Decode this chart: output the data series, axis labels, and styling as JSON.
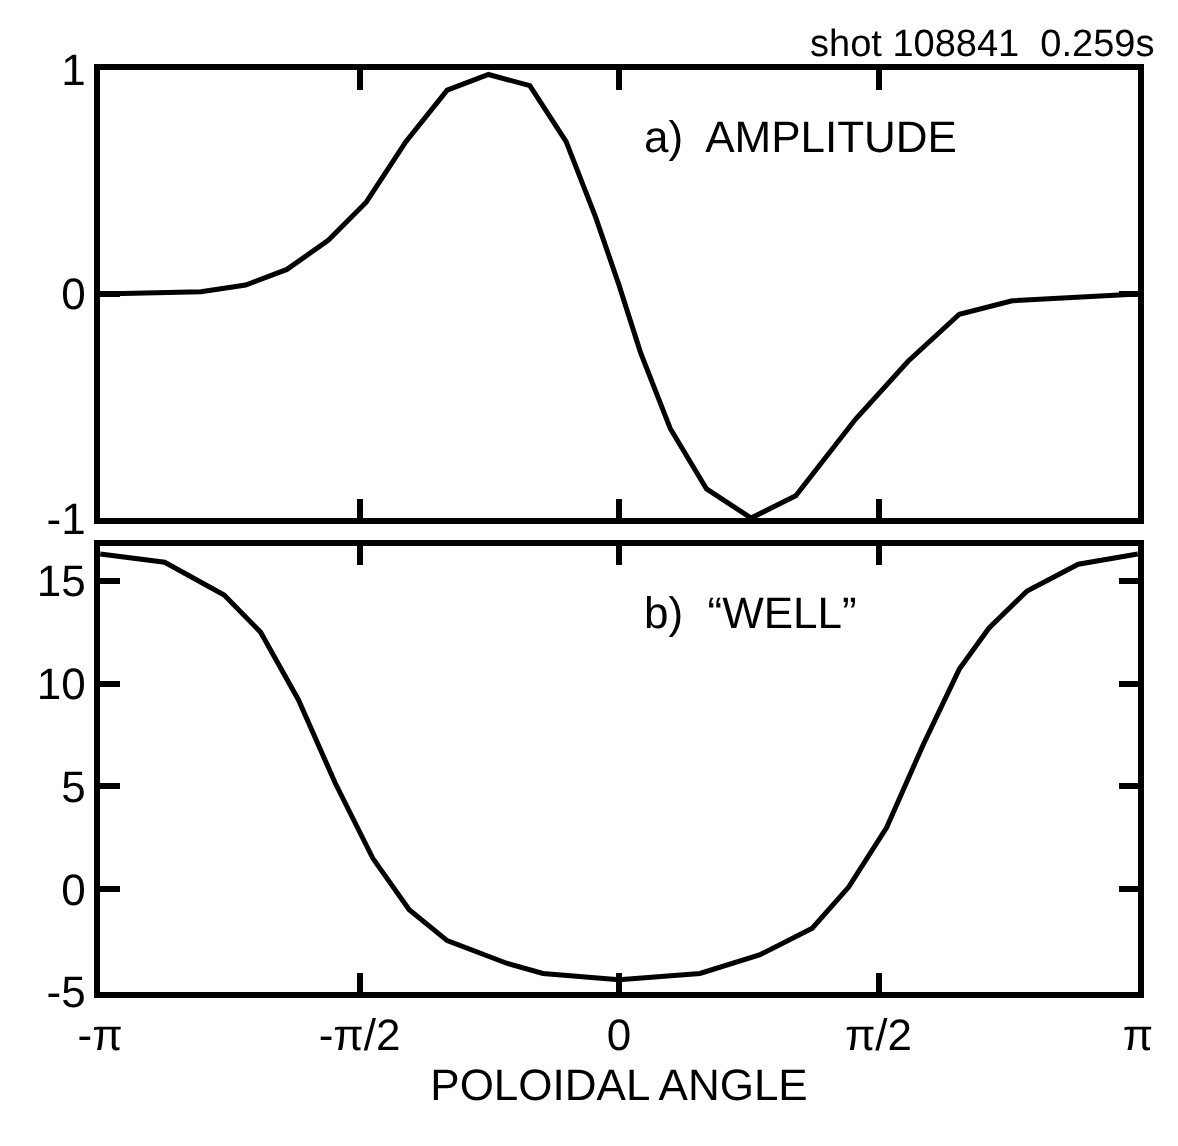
{
  "chart_data": [
    {
      "type": "line",
      "annotations": [
        "shot 108841  0.259s",
        "a)  AMPLITUDE"
      ],
      "tick_labels": "y",
      "marker": "none",
      "line_style": "solid",
      "x": [
        -3.14,
        -2.53,
        -2.26,
        -2.01,
        -1.76,
        -1.53,
        -1.29,
        -1.04,
        -0.79,
        -0.54,
        -0.32,
        -0.14,
        0.0,
        0.13,
        0.31,
        0.53,
        0.8,
        1.07,
        1.43,
        1.75,
        2.06,
        2.38,
        3.14
      ],
      "series": [
        {
          "color": "#000000",
          "values": [
            0,
            0.01,
            0.04,
            0.11,
            0.24,
            0.41,
            0.68,
            0.91,
            0.98,
            0.93,
            0.68,
            0.34,
            0.04,
            -0.26,
            -0.6,
            -0.87,
            -1.0,
            -0.9,
            -0.56,
            -0.3,
            -0.09,
            -0.03,
            0
          ]
        }
      ],
      "xlim": [
        -3.1416,
        3.1416
      ],
      "xticks": [
        {
          "value": -3.1416,
          "label": null
        },
        {
          "value": -1.5708,
          "label": null
        },
        {
          "value": 0,
          "label": null
        },
        {
          "value": 1.5708,
          "label": null
        },
        {
          "value": 3.1416,
          "label": null
        }
      ],
      "ylim": [
        -1,
        1
      ],
      "yticks": [
        -1,
        0,
        1
      ]
    },
    {
      "type": "line",
      "annotations": [
        "b)  “WELL”"
      ],
      "xlabel": "POLOIDAL ANGLE",
      "marker": "none",
      "line_style": "solid",
      "x": [
        -3.14,
        -2.75,
        -2.39,
        -2.17,
        -1.94,
        -1.72,
        -1.49,
        -1.27,
        -1.04,
        -0.68,
        -0.46,
        0.0,
        0.49,
        0.85,
        1.17,
        1.39,
        1.62,
        1.84,
        2.06,
        2.24,
        2.47,
        2.78,
        3.14
      ],
      "series": [
        {
          "color": "#000000",
          "values": [
            16.3,
            15.9,
            14.3,
            12.5,
            9.2,
            5.2,
            1.5,
            -1.0,
            -2.5,
            -3.6,
            -4.1,
            -4.4,
            -4.1,
            -3.2,
            -1.9,
            0.1,
            3.0,
            7.0,
            10.7,
            12.7,
            14.5,
            15.8,
            16.3
          ]
        }
      ],
      "xlim": [
        -3.1416,
        3.1416
      ],
      "xticks": [
        {
          "value": -3.1416,
          "label": "-π"
        },
        {
          "value": -1.5708,
          "label": "-π/2"
        },
        {
          "value": 0,
          "label": "0"
        },
        {
          "value": 1.5708,
          "label": "π/2"
        },
        {
          "value": 3.1416,
          "label": "π"
        }
      ],
      "ylim": [
        -5,
        16.7
      ],
      "yticks": [
        -5,
        0,
        5,
        10,
        15
      ]
    }
  ]
}
